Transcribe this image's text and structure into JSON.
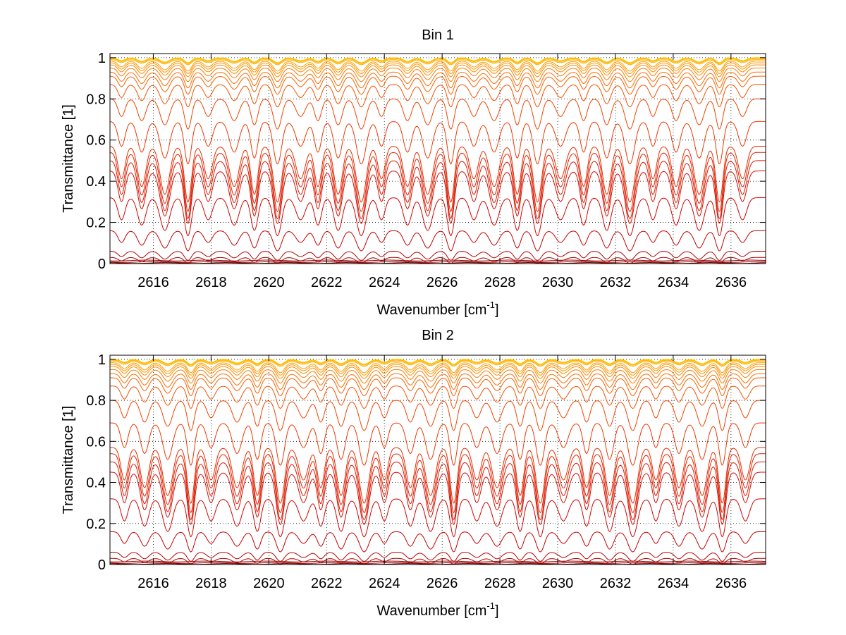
{
  "chart_data": [
    {
      "type": "line",
      "title": "Bin 1",
      "xlabel": "Wavenumber [cm",
      "xlabel_sup": "-1",
      "xlabel_suffix": "]",
      "ylabel": "Transmittance [1]",
      "xlim": [
        2614.5,
        2637.2
      ],
      "ylim": [
        0,
        1.02
      ],
      "xticks": [
        2616,
        2618,
        2620,
        2622,
        2624,
        2626,
        2628,
        2630,
        2632,
        2634,
        2636
      ],
      "xtick_labels": [
        "2616",
        "2618",
        "2620",
        "2622",
        "2624",
        "2626",
        "2628",
        "2630",
        "2632",
        "2634",
        "2636"
      ],
      "yticks": [
        0,
        0.2,
        0.4,
        0.6,
        0.8,
        1
      ],
      "ytick_labels": [
        "0",
        "0.2",
        "0.4",
        "0.6",
        "0.8",
        "1"
      ],
      "grid": true,
      "grid_style": "dotted",
      "colormap": "dark-red-to-yellow",
      "line_baselines": [
        0.003,
        0.008,
        0.015,
        0.03,
        0.06,
        0.16,
        0.32,
        0.45,
        0.5,
        0.54,
        0.57,
        0.69,
        0.8,
        0.87,
        0.91,
        0.93,
        0.95,
        0.965,
        0.975,
        0.983,
        0.99,
        0.995,
        0.998,
        1.0
      ],
      "absorption_lines_x": [
        2614.9,
        2615.6,
        2616.4,
        2617.2,
        2617.9,
        2618.8,
        2619.5,
        2620.3,
        2621.1,
        2621.7,
        2622.4,
        2623.2,
        2623.9,
        2624.8,
        2625.5,
        2626.3,
        2627.1,
        2627.8,
        2628.6,
        2629.3,
        2630.1,
        2630.9,
        2631.7,
        2632.5,
        2633.3,
        2634.1,
        2634.9,
        2635.6,
        2636.4
      ]
    },
    {
      "type": "line",
      "title": "Bin 2",
      "xlabel": "Wavenumber [cm",
      "xlabel_sup": "-1",
      "xlabel_suffix": "]",
      "ylabel": "Transmittance [1]",
      "xlim": [
        2614.5,
        2637.2
      ],
      "ylim": [
        0,
        1.02
      ],
      "xticks": [
        2616,
        2618,
        2620,
        2622,
        2624,
        2626,
        2628,
        2630,
        2632,
        2634,
        2636
      ],
      "xtick_labels": [
        "2616",
        "2618",
        "2620",
        "2622",
        "2624",
        "2626",
        "2628",
        "2630",
        "2632",
        "2634",
        "2636"
      ],
      "yticks": [
        0,
        0.2,
        0.4,
        0.6,
        0.8,
        1
      ],
      "ytick_labels": [
        "0",
        "0.2",
        "0.4",
        "0.6",
        "0.8",
        "1"
      ],
      "grid": true,
      "grid_style": "dotted",
      "colormap": "dark-red-to-yellow",
      "line_baselines": [
        0.003,
        0.008,
        0.015,
        0.03,
        0.06,
        0.16,
        0.32,
        0.45,
        0.5,
        0.54,
        0.57,
        0.69,
        0.8,
        0.87,
        0.91,
        0.93,
        0.95,
        0.965,
        0.975,
        0.983,
        0.99,
        0.995,
        0.998,
        1.0
      ],
      "absorption_lines_x": [
        2615.0,
        2615.7,
        2616.5,
        2617.3,
        2618.0,
        2618.9,
        2619.6,
        2620.4,
        2621.2,
        2621.8,
        2622.5,
        2623.3,
        2624.0,
        2624.9,
        2625.6,
        2626.4,
        2627.2,
        2627.9,
        2628.7,
        2629.4,
        2630.2,
        2631.0,
        2631.8,
        2632.6,
        2633.4,
        2634.2,
        2635.0,
        2635.7,
        2636.5
      ]
    }
  ]
}
